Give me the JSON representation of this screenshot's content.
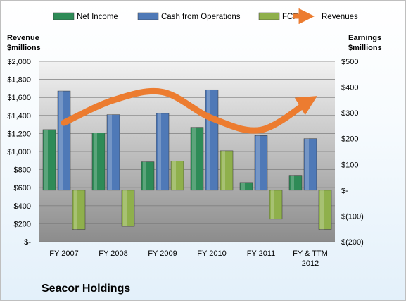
{
  "chart_data": {
    "type": "bar",
    "title": "Seacor Holdings",
    "categories": [
      "FY 2007",
      "FY 2008",
      "FY 2009",
      "FY 2010",
      "FY 2011",
      "FY & TTM 2012"
    ],
    "category_lines": [
      [
        "FY 2007"
      ],
      [
        "FY 2008"
      ],
      [
        "FY 2009"
      ],
      [
        "FY 2010"
      ],
      [
        "FY 2011"
      ],
      [
        "FY & TTM",
        "2012"
      ]
    ],
    "left_axis": {
      "title_lines": [
        "Revenue",
        "$millions"
      ],
      "ylim": [
        0,
        2000
      ],
      "tick_labels": [
        "$-",
        "$200",
        "$400",
        "$600",
        "$800",
        "$1,000",
        "$1,200",
        "$1,400",
        "$1,600",
        "$1,800",
        "$2,000"
      ]
    },
    "right_axis": {
      "title_lines": [
        "Earnings",
        "$millions"
      ],
      "ylim": [
        -200,
        500
      ],
      "tick_labels": [
        "$(200)",
        "$(100)",
        "$-",
        "$100",
        "$200",
        "$300",
        "$400",
        "$500"
      ]
    },
    "grid": true,
    "legend_position": "top",
    "bar_series": [
      {
        "name": "Net Income",
        "axis": "right",
        "color": "#2e8b57",
        "values": [
          235,
          222,
          110,
          244,
          30,
          58
        ]
      },
      {
        "name": "Cash from Operations",
        "axis": "right",
        "color": "#4f79b7",
        "values": [
          385,
          293,
          298,
          390,
          212,
          200
        ]
      },
      {
        "name": "FCF",
        "axis": "right",
        "color": "#8fb04c",
        "values": [
          -152,
          -140,
          113,
          153,
          -112,
          -152
        ]
      }
    ],
    "line_series": [
      {
        "name": "Revenues",
        "axis": "left",
        "color": "#ec7c30",
        "values": [
          1320,
          1570,
          1660,
          1370,
          1240,
          1570
        ]
      }
    ]
  }
}
